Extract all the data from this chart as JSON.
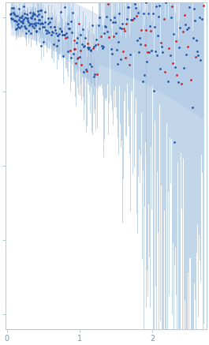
{
  "title": "",
  "xlabel": "",
  "ylabel": "",
  "xlim": [
    -0.02,
    2.75
  ],
  "ylim": [
    -0.05,
    1.05
  ],
  "bg_color": "#ffffff",
  "blue_dot_color": "#2255aa",
  "red_dot_color": "#cc2222",
  "error_bar_color": "#99bbdd",
  "shade_color": "#c5d8ee",
  "seed": 42,
  "n_points": 300,
  "n_red": 48
}
